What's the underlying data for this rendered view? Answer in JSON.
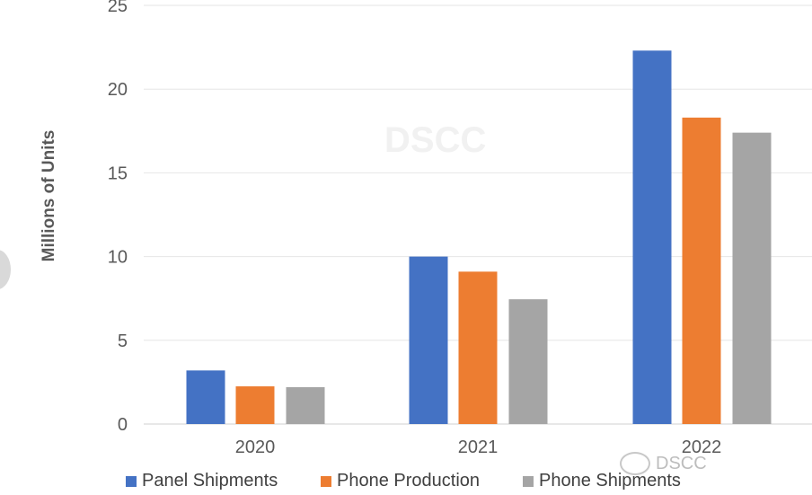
{
  "chart_data": {
    "type": "bar",
    "title": "",
    "xlabel": "",
    "ylabel": "Millions of Units",
    "ylim": [
      0,
      25
    ],
    "yticks": [
      0,
      5,
      10,
      15,
      20,
      25
    ],
    "grid": true,
    "legend_placement": "bottom",
    "categories": [
      "2020",
      "2021",
      "2022"
    ],
    "series": [
      {
        "name": "Panel Shipments",
        "color": "#4472C4",
        "values": [
          3.2,
          10.0,
          22.3
        ]
      },
      {
        "name": "Phone Production",
        "color": "#ED7D31",
        "values": [
          2.25,
          9.1,
          18.3
        ]
      },
      {
        "name": "Phone Shipments",
        "color": "#A5A5A5",
        "values": [
          2.2,
          7.45,
          17.4
        ]
      }
    ]
  },
  "watermark": "DSCC",
  "wechat_watermark": "DSCC"
}
